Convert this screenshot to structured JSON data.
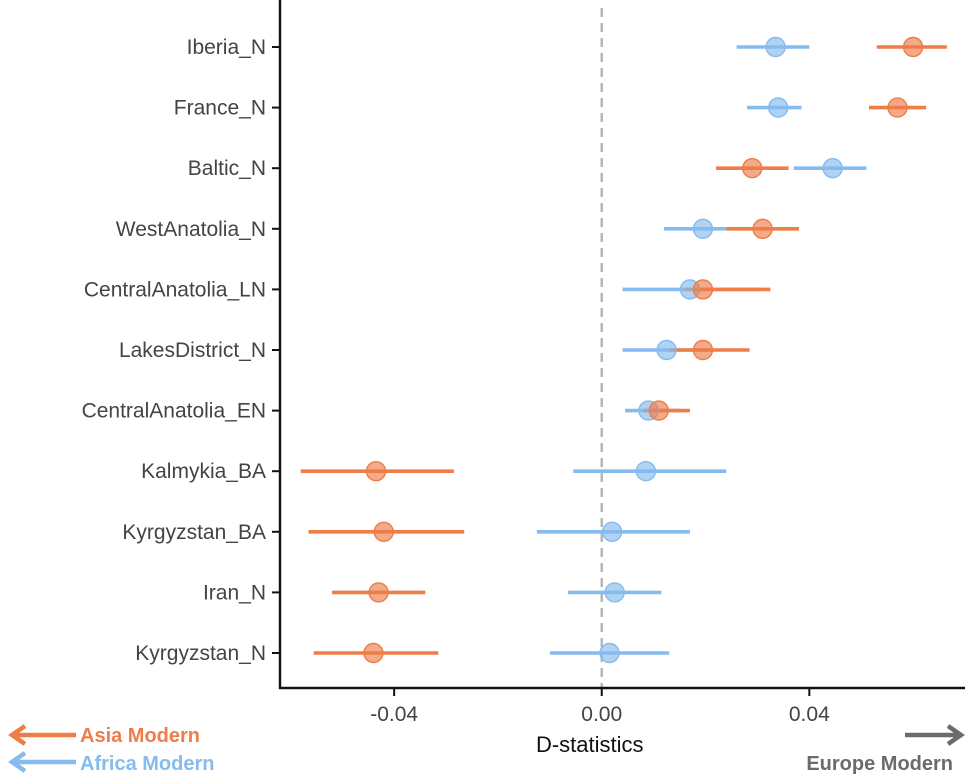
{
  "chart_data": {
    "type": "scatter",
    "subtype": "dot-and-interval (forest plot)",
    "title": "",
    "xlabel": "D-statistics",
    "ylabel": "",
    "xlim": [
      -0.062,
      0.07
    ],
    "xticks": [
      -0.04,
      0.0,
      0.04
    ],
    "xtick_labels": [
      "-0.04",
      "0.00",
      "0.04"
    ],
    "reference_line": {
      "x": 0.0,
      "style": "dashed",
      "color": "#b3b3b3"
    },
    "grid": false,
    "categories": [
      "Iberia_N",
      "France_N",
      "Baltic_N",
      "WestAnatolia_N",
      "CentralAnatolia_LN",
      "LakesDistrict_N",
      "CentralAnatolia_EN",
      "Kalmykia_BA",
      "Kyrgyzstan_BA",
      "Iran_N",
      "Kyrgyzstan_N"
    ],
    "series": [
      {
        "name": "Africa Modern",
        "color": "#85bbee",
        "values": [
          0.0335,
          0.034,
          0.0445,
          0.0195,
          0.017,
          0.0125,
          0.009,
          0.0085,
          0.002,
          0.0025,
          0.0015
        ],
        "lower": [
          0.026,
          0.028,
          0.037,
          0.012,
          0.004,
          0.004,
          0.0045,
          -0.0055,
          -0.0125,
          -0.0065,
          -0.01
        ],
        "upper": [
          0.04,
          0.0385,
          0.051,
          0.024,
          0.0305,
          0.0215,
          0.015,
          0.024,
          0.017,
          0.0115,
          0.013
        ]
      },
      {
        "name": "Asia Modern",
        "color": "#ee7d48",
        "values": [
          0.06,
          0.057,
          0.029,
          0.031,
          0.0195,
          0.0195,
          0.011,
          -0.0435,
          -0.042,
          -0.043,
          -0.044
        ],
        "lower": [
          0.053,
          0.0515,
          0.022,
          0.024,
          0.016,
          0.013,
          0.008,
          -0.058,
          -0.0565,
          -0.052,
          -0.0555
        ],
        "upper": [
          0.0665,
          0.0625,
          0.036,
          0.038,
          0.0325,
          0.0285,
          0.017,
          -0.0285,
          -0.0265,
          -0.034,
          -0.0315
        ]
      }
    ],
    "direction_legend": [
      {
        "label": "Asia Modern",
        "color": "#ee7d48",
        "arrow": "left"
      },
      {
        "label": "Africa Modern",
        "color": "#85bbee",
        "arrow": "left"
      },
      {
        "label": "Europe Modern",
        "color": "#6b6b6b",
        "arrow": "right"
      }
    ]
  }
}
